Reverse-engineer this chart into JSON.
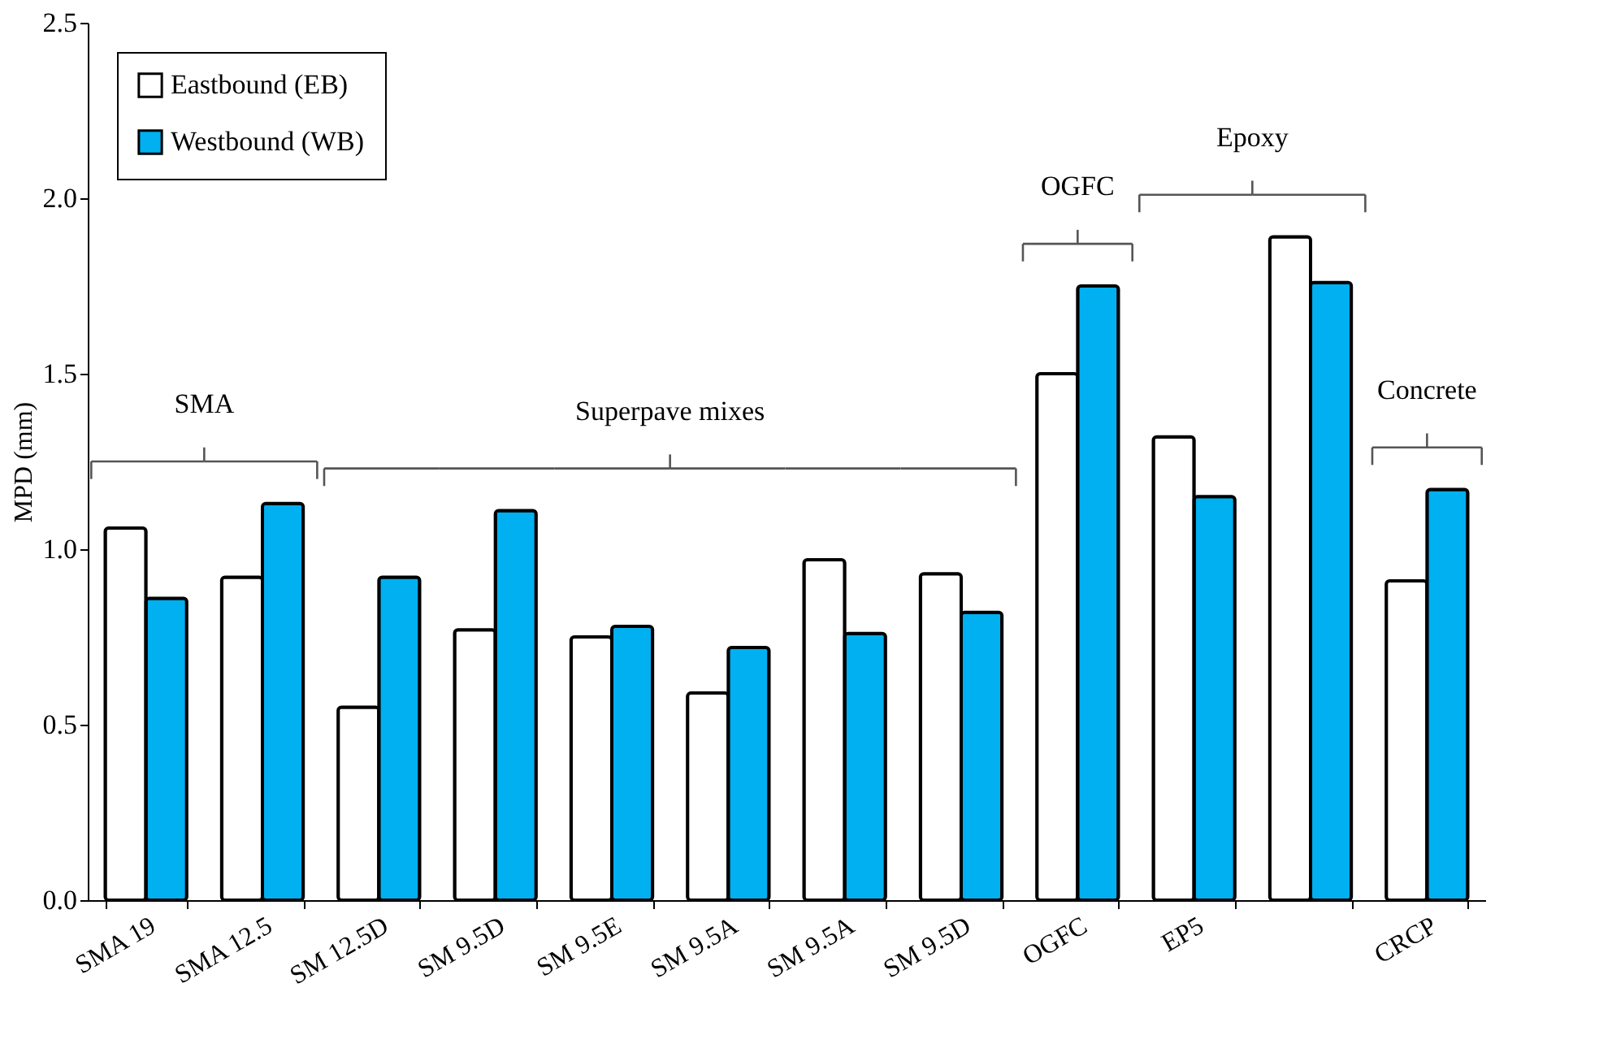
{
  "chart_data": {
    "type": "bar",
    "categories": [
      "SMA 19",
      "SMA 12.5",
      "SM 12.5D",
      "SM 9.5D",
      "SM 9.5E",
      "SM 9.5A",
      "SM 9.5A",
      "SM 9.5D",
      "OGFC",
      "EP5",
      null,
      "CRCP"
    ],
    "series": [
      {
        "name": "Eastbound (EB)",
        "color": "#ffffff",
        "values": [
          1.06,
          0.92,
          0.55,
          0.77,
          0.75,
          0.59,
          0.97,
          0.93,
          1.5,
          1.32,
          1.89,
          0.91
        ]
      },
      {
        "name": "Westbound (WB)",
        "color": "#00b0f0",
        "values": [
          0.86,
          1.13,
          0.92,
          1.11,
          0.78,
          0.72,
          0.76,
          0.82,
          1.75,
          1.15,
          1.76,
          1.17
        ]
      }
    ],
    "ylabel": "MPD (mm)",
    "ylim": [
      0,
      2.5
    ],
    "yticks": [
      {
        "value": 0,
        "label": "0.0"
      },
      {
        "value": 0.5,
        "label": "0.5"
      },
      {
        "value": 1,
        "label": "1.0"
      },
      {
        "value": 1.5,
        "label": "1.5"
      },
      {
        "value": 2,
        "label": "2.0"
      },
      {
        "value": 2.5,
        "label": "2.5"
      }
    ],
    "annotations": [
      "SMA",
      "Superpave mixes",
      "OGFC",
      "Epoxy",
      "Concrete"
    ],
    "legend": "top left",
    "grid": false
  }
}
